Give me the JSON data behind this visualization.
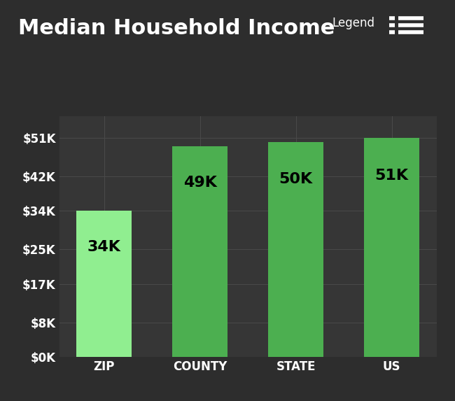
{
  "title": "Median Household Income",
  "categories": [
    "ZIP",
    "COUNTY",
    "STATE",
    "US"
  ],
  "values": [
    34000,
    49000,
    50000,
    51000
  ],
  "bar_labels": [
    "34K",
    "49K",
    "50K",
    "51K"
  ],
  "bar_color_zip": "#90EE90",
  "bar_color_others": "#4CAF50",
  "background_color": "#2d2d2d",
  "plot_bg_color": "#363636",
  "text_color": "#ffffff",
  "label_color": "#000000",
  "grid_color": "#4a4a4a",
  "ylim": [
    0,
    56000
  ],
  "yticks": [
    0,
    8000,
    17000,
    25000,
    34000,
    42000,
    51000
  ],
  "ytick_labels": [
    "$0K",
    "$8K",
    "$17K",
    "$25K",
    "$34K",
    "$42K",
    "$51K"
  ],
  "title_fontsize": 22,
  "axis_label_fontsize": 12,
  "bar_label_fontsize": 16,
  "xtick_fontsize": 12,
  "legend_text": "Legend",
  "legend_fontsize": 12
}
